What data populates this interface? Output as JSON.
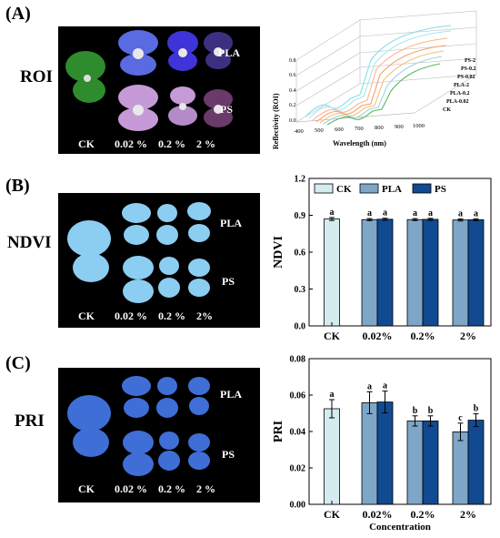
{
  "panels": {
    "A": {
      "label": "(A)",
      "row_label": "ROI",
      "image_labels": {
        "groups": [
          "PLA",
          "PS"
        ],
        "columns": [
          "CK",
          "0.02 %",
          "0.2 %",
          "2 %"
        ]
      },
      "spectra": {
        "ylabel": "Reflectivity (ROI)",
        "xlabel": "Wavelength (nm)",
        "xticks": [
          "400",
          "500",
          "600",
          "700",
          "800",
          "900",
          "1000"
        ],
        "yticks": [
          "0.0",
          "0.2",
          "0.4",
          "0.6",
          "0.8"
        ],
        "series": [
          "PS-2",
          "PS-0.2",
          "PS-0.02",
          "PLA-2",
          "PLA-0.2",
          "PLA-0.02",
          "CK"
        ],
        "colors": [
          "#7fe0e8",
          "#a8e6ec",
          "#ffb38a",
          "#f6a06a",
          "#f2c27a",
          "#9fd2ea",
          "#58b85a"
        ]
      }
    },
    "B": {
      "label": "(B)",
      "row_label": "NDVI",
      "image_labels": {
        "groups": [
          "PLA",
          "PS"
        ],
        "columns": [
          "CK",
          "0.02 %",
          "0.2 %",
          "2%"
        ]
      }
    },
    "C": {
      "label": "(C)",
      "row_label": "PRI",
      "image_labels": {
        "groups": [
          "PLA",
          "PS"
        ],
        "columns": [
          "CK",
          "0.02 %",
          "0.2 %",
          "2 %"
        ]
      }
    }
  },
  "colors": {
    "ck": "#d4ecf0",
    "pla": "#7ea6c8",
    "ps": "#114a90"
  },
  "chart_data": [
    {
      "type": "bar",
      "ylabel": "NDVI",
      "xlabel": "",
      "categories": [
        "CK",
        "0.02%",
        "0.2%",
        "2%"
      ],
      "legend": [
        "CK",
        "PLA",
        "PS"
      ],
      "legend_position": "top",
      "ylim": [
        0.0,
        1.2
      ],
      "yticks": [
        "0.0",
        "0.3",
        "0.6",
        "0.9",
        "1.2"
      ],
      "ytick_values": [
        0.0,
        0.3,
        0.6,
        0.9,
        1.2
      ],
      "groups": [
        {
          "category": "CK",
          "bars": [
            {
              "series": "CK",
              "value": 0.87,
              "err": 0.012,
              "letter": "a"
            }
          ]
        },
        {
          "category": "0.02%",
          "bars": [
            {
              "series": "PLA",
              "value": 0.865,
              "err": 0.008,
              "letter": "a"
            },
            {
              "series": "PS",
              "value": 0.868,
              "err": 0.008,
              "letter": "a"
            }
          ]
        },
        {
          "category": "0.2%",
          "bars": [
            {
              "series": "PLA",
              "value": 0.865,
              "err": 0.008,
              "letter": "a"
            },
            {
              "series": "PS",
              "value": 0.867,
              "err": 0.008,
              "letter": "a"
            }
          ]
        },
        {
          "category": "2%",
          "bars": [
            {
              "series": "PLA",
              "value": 0.862,
              "err": 0.008,
              "letter": "a"
            },
            {
              "series": "PS",
              "value": 0.864,
              "err": 0.008,
              "letter": "a"
            }
          ]
        }
      ]
    },
    {
      "type": "bar",
      "ylabel": "PRI",
      "xlabel": "Concentration",
      "categories": [
        "CK",
        "0.02%",
        "0.2%",
        "2%"
      ],
      "ylim": [
        0.0,
        0.08
      ],
      "yticks": [
        "0.00",
        "0.02",
        "0.04",
        "0.06",
        "0.08"
      ],
      "ytick_values": [
        0.0,
        0.02,
        0.04,
        0.06,
        0.08
      ],
      "groups": [
        {
          "category": "CK",
          "bars": [
            {
              "series": "CK",
              "value": 0.0525,
              "err": 0.005,
              "letter": "a"
            }
          ]
        },
        {
          "category": "0.02%",
          "bars": [
            {
              "series": "PLA",
              "value": 0.0558,
              "err": 0.006,
              "letter": "a"
            },
            {
              "series": "PS",
              "value": 0.0562,
              "err": 0.006,
              "letter": "a"
            }
          ]
        },
        {
          "category": "0.2%",
          "bars": [
            {
              "series": "PLA",
              "value": 0.0458,
              "err": 0.0028,
              "letter": "b"
            },
            {
              "series": "PS",
              "value": 0.0458,
              "err": 0.0028,
              "letter": "b"
            }
          ]
        },
        {
          "category": "2%",
          "bars": [
            {
              "series": "PLA",
              "value": 0.0398,
              "err": 0.0048,
              "letter": "c"
            },
            {
              "series": "PS",
              "value": 0.0462,
              "err": 0.0035,
              "letter": "b"
            }
          ]
        }
      ]
    }
  ]
}
